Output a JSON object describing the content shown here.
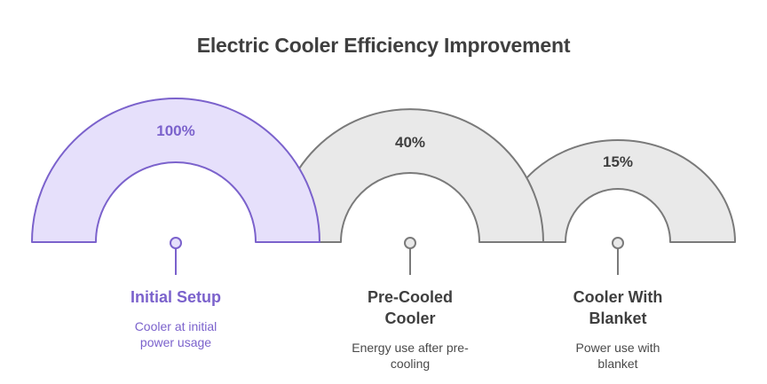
{
  "title": "Electric Cooler Efficiency Improvement",
  "stages": [
    {
      "percent": "100%",
      "label": "Initial Setup",
      "description": "Cooler at initial power usage",
      "value": 100,
      "color_fill": "#e6e0fb",
      "color_stroke": "#7b62cc",
      "color_text": "#7b62cc"
    },
    {
      "percent": "40%",
      "label": "Pre-Cooled Cooler",
      "description": "Energy use after pre-cooling",
      "value": 40,
      "color_fill": "#e9e9e9",
      "color_stroke": "#7a7a7a",
      "color_text": "#3f3f3f"
    },
    {
      "percent": "15%",
      "label": "Cooler With Blanket",
      "description": "Power use with blanket",
      "value": 15,
      "color_fill": "#e9e9e9",
      "color_stroke": "#7a7a7a",
      "color_text": "#3f3f3f"
    }
  ]
}
